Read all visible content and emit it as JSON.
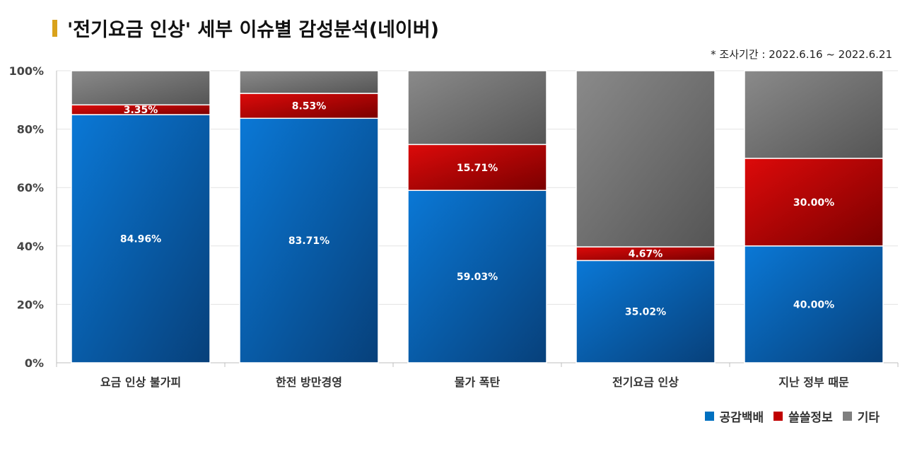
{
  "header": {
    "title": "'전기요금 인상' 세부 이슈별 감성분석(네이버)",
    "period": "* 조사기간 : 2022.6.16 ~ 2022.6.21"
  },
  "colors": {
    "accent": "#d9a21b",
    "positive": "#0070c0",
    "negative": "#c00000",
    "other": "#7f7f7f"
  },
  "chart_data": {
    "type": "bar",
    "stacked": true,
    "categories": [
      "요금 인상 불가피",
      "한전 방만경영",
      "물가 폭탄",
      "전기요금 인상",
      "지난 정부 때문"
    ],
    "series": [
      {
        "name": "공감백배",
        "values": [
          84.96,
          83.71,
          59.03,
          35.02,
          40.0
        ],
        "labels": [
          "84.96%",
          "83.71%",
          "59.03%",
          "35.02%",
          "40.00%"
        ],
        "color": "#0070c0"
      },
      {
        "name": "쓸쓸정보",
        "values": [
          3.35,
          8.53,
          15.71,
          4.67,
          30.0
        ],
        "labels": [
          "3.35%",
          "8.53%",
          "15.71%",
          "4.67%",
          "30.00%"
        ],
        "color": "#c00000"
      },
      {
        "name": "기타",
        "values": [
          11.69,
          7.76,
          25.26,
          60.31,
          30.0
        ],
        "color": "#7f7f7f"
      }
    ],
    "ylim": [
      0,
      100
    ],
    "yticks": [
      "0%",
      "20%",
      "40%",
      "60%",
      "80%",
      "100%"
    ],
    "grid": true,
    "legend_position": "bottom-right"
  }
}
